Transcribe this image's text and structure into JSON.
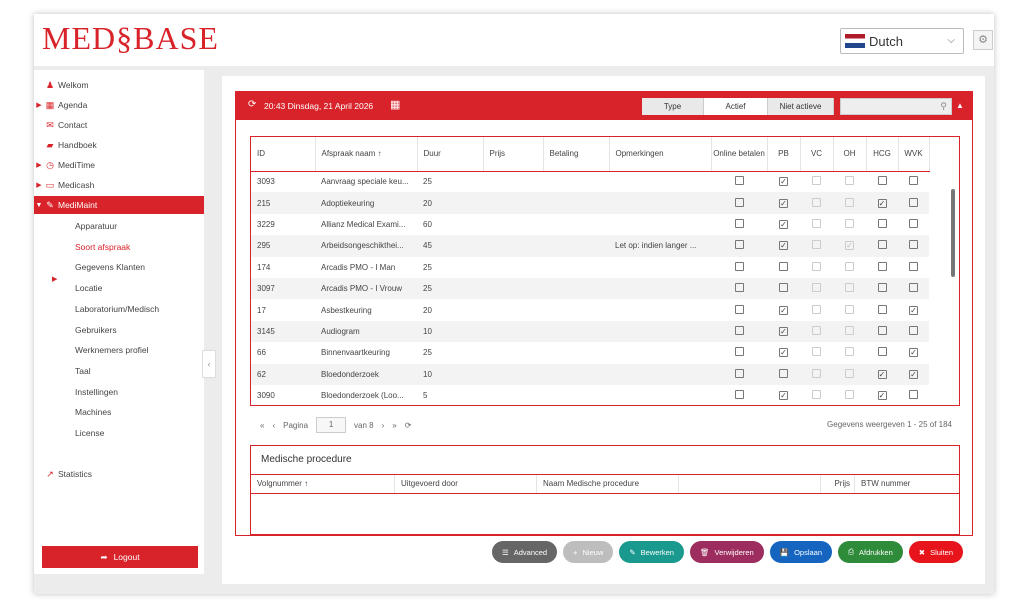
{
  "app": {
    "logo": "MED§BASE",
    "language": "Dutch"
  },
  "sidebar": {
    "items": [
      {
        "label": "Welkom",
        "icon": "user-icon",
        "arrow": ""
      },
      {
        "label": "Agenda",
        "icon": "calendar-icon",
        "arrow": "▶"
      },
      {
        "label": "Contact",
        "icon": "envelope-icon",
        "arrow": ""
      },
      {
        "label": "Handboek",
        "icon": "book-icon",
        "arrow": ""
      },
      {
        "label": "MediTime",
        "icon": "clock-icon",
        "arrow": "▶"
      },
      {
        "label": "Medicash",
        "icon": "card-icon",
        "arrow": "▶"
      },
      {
        "label": "MediMaint",
        "icon": "wrench-icon",
        "arrow": "▼"
      }
    ],
    "subitems": [
      "Apparatuur",
      "Soort afspraak",
      "Gegevens Klanten",
      "Locatie",
      "Laboratorium/Medisch",
      "Gebruikers",
      "Werknemers profiel",
      "Taal",
      "Instellingen",
      "Machines",
      "License"
    ],
    "statistics": "Statistics",
    "logout": "Logout"
  },
  "panel": {
    "datetime": "20:43 Dinsdag, 21 April 2026",
    "filters": [
      "Type",
      "Actief",
      "Niet actieve"
    ],
    "columns": [
      "ID",
      "Afspraak naam ↑",
      "Duur",
      "Prijs",
      "Betaling",
      "Opmerkingen",
      "Online betalen",
      "PB",
      "VC",
      "OH",
      "HCG",
      "WVK"
    ],
    "rows": [
      {
        "id": "3093",
        "name": "Aanvraag speciale keu...",
        "duur": "25",
        "opm": "",
        "cb": [
          0,
          1,
          -1,
          -1,
          0,
          0
        ]
      },
      {
        "id": "215",
        "name": "Adoptiekeuring",
        "duur": "20",
        "opm": "",
        "cb": [
          0,
          1,
          -1,
          -1,
          1,
          0
        ]
      },
      {
        "id": "3229",
        "name": "Allianz Medical Exami...",
        "duur": "60",
        "opm": "",
        "cb": [
          0,
          1,
          -1,
          -1,
          0,
          0
        ]
      },
      {
        "id": "295",
        "name": "Arbeidsongeschikthei...",
        "duur": "45",
        "opm": "Let op: indien langer ...",
        "cb": [
          0,
          1,
          -1,
          -2,
          0,
          0
        ]
      },
      {
        "id": "174",
        "name": "Arcadis PMO - I Man",
        "duur": "25",
        "opm": "",
        "cb": [
          0,
          0,
          -1,
          -1,
          0,
          0
        ]
      },
      {
        "id": "3097",
        "name": "Arcadis PMO - I Vrouw",
        "duur": "25",
        "opm": "",
        "cb": [
          0,
          0,
          -1,
          -1,
          0,
          0
        ]
      },
      {
        "id": "17",
        "name": "Asbestkeuring",
        "duur": "20",
        "opm": "",
        "cb": [
          0,
          1,
          -1,
          -1,
          0,
          1
        ]
      },
      {
        "id": "3145",
        "name": "Audiogram",
        "duur": "10",
        "opm": "",
        "cb": [
          0,
          1,
          -1,
          -1,
          0,
          0
        ]
      },
      {
        "id": "66",
        "name": "Binnenvaartkeuring",
        "duur": "25",
        "opm": "",
        "cb": [
          0,
          1,
          -1,
          -1,
          0,
          1
        ]
      },
      {
        "id": "62",
        "name": "Bloedonderzoek",
        "duur": "10",
        "opm": "",
        "cb": [
          0,
          0,
          -1,
          -1,
          1,
          1
        ]
      },
      {
        "id": "3090",
        "name": "Bloedonderzoek (Loo...",
        "duur": "5",
        "opm": "",
        "cb": [
          0,
          1,
          -1,
          -1,
          1,
          0
        ]
      }
    ],
    "pager": {
      "page_label": "Pagina",
      "page": "1",
      "of": "van 8",
      "info": "Gegevens weergeven 1 - 25 of 184"
    }
  },
  "procedure": {
    "title": "Medische procedure",
    "columns": [
      "Volgnummer ↑",
      "Uitgevoerd door",
      "Naam Medische procedure",
      "",
      "Prijs",
      "BTW nummer"
    ]
  },
  "buttons": [
    {
      "label": "Advanced",
      "color": "#666666",
      "icon": "☰"
    },
    {
      "label": "Nieuw",
      "color": "#bdbdbd",
      "icon": "+"
    },
    {
      "label": "Bewerken",
      "color": "#1a9a8e",
      "icon": "✎"
    },
    {
      "label": "Verwijderen",
      "color": "#9c2d5e",
      "icon": "🗑"
    },
    {
      "label": "Opslaan",
      "color": "#1565c0",
      "icon": "💾"
    },
    {
      "label": "Afdrukken",
      "color": "#2e8b3a",
      "icon": "⎙"
    },
    {
      "label": "Sluiten",
      "color": "#e8141c",
      "icon": "✖"
    }
  ]
}
